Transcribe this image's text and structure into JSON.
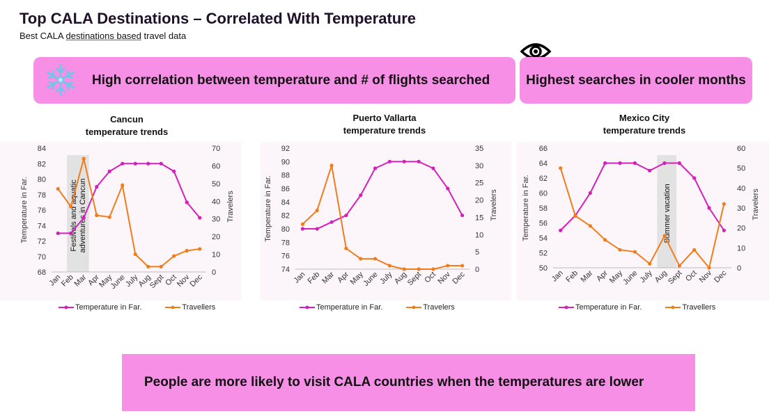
{
  "header": {
    "title": "Top CALA Destinations – Correlated With Temperature",
    "subtitle_pre": "Best CALA ",
    "subtitle_link": "destinations based",
    "subtitle_post": " travel data"
  },
  "banners": {
    "left": "High correlation between temperature and # of flights searched",
    "right": "Highest searches in cooler months",
    "bottom": "People are more likely to visit CALA countries when the temperatures are lower"
  },
  "icons": [
    "snowflake-icon",
    "eye-icon"
  ],
  "colors": {
    "temperature": "#d41fba",
    "travelers": "#f07d1a",
    "banner": "#f78fe6"
  },
  "chart_data": [
    {
      "type": "line",
      "title_line1": "Cancun",
      "title_line2": "temperature trends",
      "categories": [
        "Jan",
        "Feb",
        "Mar",
        "Apr",
        "May",
        "June",
        "July",
        "Aug",
        "Sept",
        "Oct",
        "Nov",
        "Dec"
      ],
      "ylabel": "Temperature in Far.",
      "y2label": "Travelers",
      "ylim": [
        68,
        84
      ],
      "yticks": [
        68,
        70,
        72,
        74,
        76,
        78,
        80,
        82,
        84
      ],
      "y2lim": [
        0,
        70
      ],
      "y2ticks": [
        0,
        10,
        20,
        30,
        40,
        50,
        60,
        70
      ],
      "series": [
        {
          "name": "Temperature in Far.",
          "axis": "left",
          "values": [
            73,
            73,
            75,
            79,
            81,
            82,
            82,
            82,
            82,
            81,
            77,
            75
          ]
        },
        {
          "name": "Travellers",
          "axis": "right",
          "values": [
            47,
            37,
            64,
            32,
            31,
            49,
            10,
            3,
            3,
            9,
            12,
            13
          ]
        }
      ],
      "annotation": {
        "text_line1": "Festivals and aquatic",
        "text_line2": "adventures in Cancun",
        "band": [
          "Feb",
          "Mar"
        ]
      },
      "legend": [
        "Temperature in Far.",
        "Travellers"
      ],
      "grid": false
    },
    {
      "type": "line",
      "title_line1": "Puerto Vallarta",
      "title_line2": "temperature trends",
      "categories": [
        "Jan",
        "Feb",
        "Mar",
        "Apr",
        "May",
        "June",
        "July",
        "Aug",
        "Sept",
        "Oct",
        "Nov",
        "Dec"
      ],
      "ylabel": "Temperature in Far.",
      "y2label": "Travelers",
      "ylim": [
        74,
        92
      ],
      "yticks": [
        74,
        76,
        78,
        80,
        82,
        84,
        86,
        88,
        90,
        92
      ],
      "y2lim": [
        0,
        35
      ],
      "y2ticks": [
        0,
        5,
        10,
        15,
        20,
        25,
        30,
        35
      ],
      "series": [
        {
          "name": "Temperature in Far.",
          "axis": "left",
          "values": [
            80,
            80,
            81,
            82,
            85,
            89,
            90,
            90,
            90,
            89,
            86,
            82
          ]
        },
        {
          "name": "Travelers",
          "axis": "right",
          "values": [
            13,
            17,
            30,
            6,
            3,
            3,
            1,
            0,
            0,
            0,
            1,
            1
          ]
        }
      ],
      "legend": [
        "Temperature in Far.",
        "Travelers"
      ],
      "grid": false
    },
    {
      "type": "line",
      "title_line1": "Mexico City",
      "title_line2": "temperature trends",
      "categories": [
        "Jan",
        "Feb",
        "Mar",
        "Apr",
        "May",
        "June",
        "July",
        "Aug",
        "Sept",
        "Oct",
        "Nov",
        "Dec"
      ],
      "ylabel": "Temperature in Far.",
      "y2label": "Travelers",
      "ylim": [
        50,
        66
      ],
      "yticks": [
        50,
        52,
        54,
        56,
        58,
        60,
        62,
        64,
        66
      ],
      "y2lim": [
        0,
        60
      ],
      "y2ticks": [
        0,
        10,
        20,
        30,
        40,
        50,
        60
      ],
      "series": [
        {
          "name": "Temperature in Far.",
          "axis": "left",
          "values": [
            55,
            57,
            60,
            64,
            64,
            64,
            63,
            64,
            64,
            62,
            58,
            55
          ]
        },
        {
          "name": "Travellers",
          "axis": "right",
          "values": [
            50,
            26,
            21,
            14,
            9,
            8,
            2,
            16,
            1,
            9,
            0,
            32
          ]
        }
      ],
      "annotation": {
        "text_line1": "Summer vacation",
        "band": [
          "Aug",
          "Aug"
        ]
      },
      "legend": [
        "Temperature in Far.",
        "Travellers"
      ],
      "grid": false
    }
  ]
}
